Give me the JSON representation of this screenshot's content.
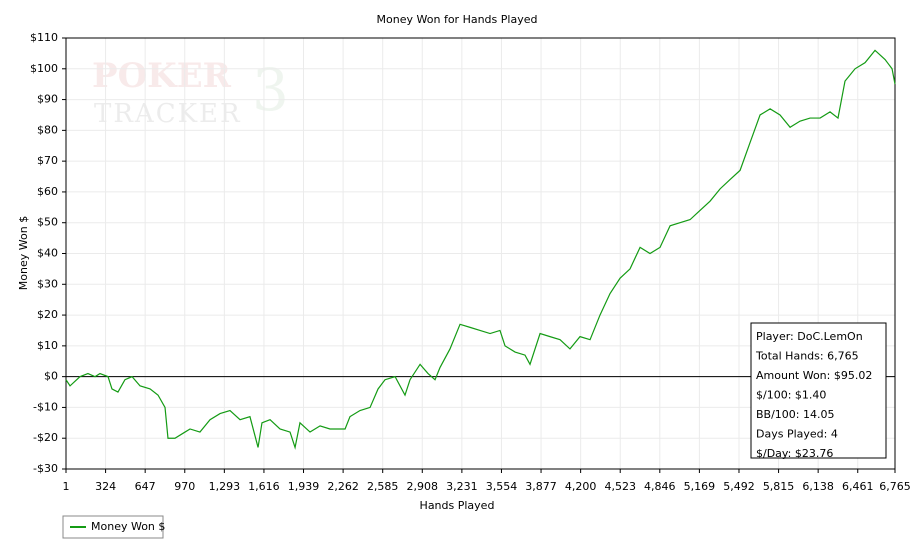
{
  "chart_data": {
    "type": "line",
    "title": "Money Won for Hands Played",
    "x_label": "Hands Played",
    "y_label": "Money Won $",
    "watermark": [
      "POKER",
      "TRACKER",
      "3"
    ],
    "x": [
      1,
      34,
      115,
      180,
      238,
      278,
      344,
      376,
      425,
      482,
      540,
      605,
      687,
      752,
      809,
      833,
      890,
      972,
      1013,
      1094,
      1176,
      1258,
      1339,
      1421,
      1502,
      1568,
      1600,
      1666,
      1747,
      1829,
      1870,
      1910,
      1992,
      2074,
      2155,
      2278,
      2318,
      2400,
      2482,
      2547,
      2604,
      2686,
      2767,
      2808,
      2890,
      2955,
      3012,
      3053,
      3134,
      3216,
      3298,
      3379,
      3461,
      3542,
      3583,
      3665,
      3746,
      3787,
      3869,
      3950,
      4032,
      4113,
      4195,
      4277,
      4358,
      4440,
      4522,
      4603,
      4685,
      4766,
      4848,
      4930,
      5011,
      5093,
      5174,
      5256,
      5338,
      5419,
      5501,
      5582,
      5664,
      5746,
      5827,
      5909,
      5990,
      6072,
      6154,
      6235,
      6300,
      6357,
      6439,
      6521,
      6602,
      6684,
      6741,
      6765
    ],
    "series": [
      {
        "name": "Money Won $",
        "color": "#149b14",
        "values": [
          -1,
          -3,
          0,
          1,
          0,
          1,
          0,
          -4,
          -5,
          -1,
          0,
          -3,
          -4,
          -6,
          -10,
          -20,
          -20,
          -18,
          -17,
          -18,
          -14,
          -12,
          -11,
          -14,
          -13,
          -23,
          -15,
          -14,
          -17,
          -18,
          -23,
          -15,
          -18,
          -16,
          -17,
          -17,
          -13,
          -11,
          -10,
          -4,
          -1,
          0,
          -6,
          -1,
          4,
          1,
          -1,
          3,
          9,
          17,
          16,
          15,
          14,
          15,
          10,
          8,
          7,
          4,
          14,
          13,
          12,
          9,
          13,
          12,
          20,
          27,
          32,
          35,
          42,
          40,
          42,
          49,
          50,
          51,
          54,
          57,
          61,
          64,
          67,
          76,
          85,
          87,
          85,
          81,
          83,
          84,
          84,
          86,
          84,
          96,
          100,
          102,
          106,
          103,
          100,
          95
        ]
      }
    ],
    "xlim": [
      1,
      6765
    ],
    "xticks": [
      1,
      324,
      647,
      970,
      {
        "value": 1293,
        "label": "1,293"
      },
      {
        "value": 1616,
        "label": "1,616"
      },
      {
        "value": 1939,
        "label": "1,939"
      },
      {
        "value": 2262,
        "label": "2,262"
      },
      {
        "value": 2585,
        "label": "2,585"
      },
      {
        "value": 2908,
        "label": "2,908"
      },
      {
        "value": 3231,
        "label": "3,231"
      },
      {
        "value": 3554,
        "label": "3,554"
      },
      {
        "value": 3877,
        "label": "3,877"
      },
      {
        "value": 4200,
        "label": "4,200"
      },
      {
        "value": 4523,
        "label": "4,523"
      },
      {
        "value": 4846,
        "label": "4,846"
      },
      {
        "value": 5169,
        "label": "5,169"
      },
      {
        "value": 5492,
        "label": "5,492"
      },
      {
        "value": 5815,
        "label": "5,815"
      },
      {
        "value": 6138,
        "label": "6,138"
      },
      {
        "value": 6461,
        "label": "6,461"
      },
      {
        "value": 6765,
        "label": "6,765"
      }
    ],
    "ylim": [
      -30,
      110
    ],
    "yticks": [
      {
        "value": -30,
        "label": "-$30"
      },
      {
        "value": -20,
        "label": "-$20"
      },
      {
        "value": -10,
        "label": "-$10"
      },
      {
        "value": 0,
        "label": "$0"
      },
      {
        "value": 10,
        "label": "$10"
      },
      {
        "value": 20,
        "label": "$20"
      },
      {
        "value": 30,
        "label": "$30"
      },
      {
        "value": 40,
        "label": "$40"
      },
      {
        "value": 50,
        "label": "$50"
      },
      {
        "value": 60,
        "label": "$60"
      },
      {
        "value": 70,
        "label": "$70"
      },
      {
        "value": 80,
        "label": "$80"
      },
      {
        "value": 90,
        "label": "$90"
      },
      {
        "value": 100,
        "label": "$100"
      },
      {
        "value": 110,
        "label": "$110"
      }
    ],
    "grid": true,
    "annotations": [
      "Player: DoC.LemOn",
      "Total Hands: 6,765",
      "Amount Won: $95.02",
      "$/100: $1.40",
      "BB/100: 14.05",
      "Days Played: 4",
      "$/Day: $23.76"
    ]
  }
}
